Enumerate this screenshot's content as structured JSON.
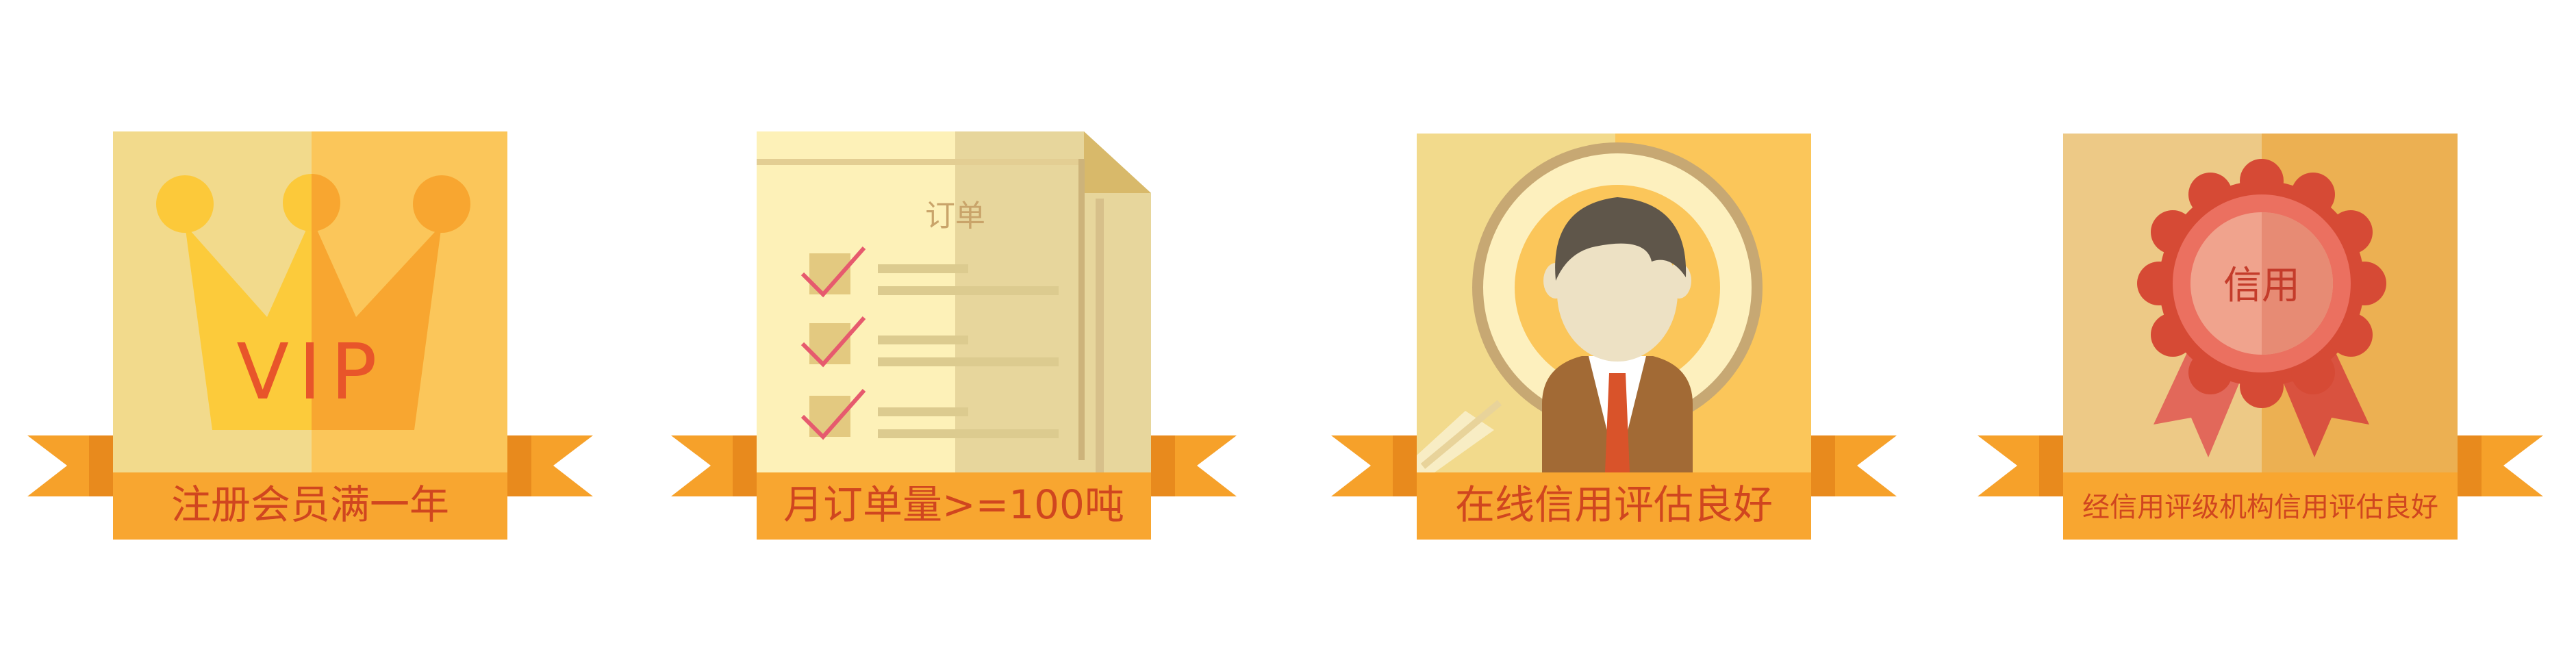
{
  "badges": [
    {
      "icon": "vip-crown-icon",
      "icon_text": "VIP",
      "banner": "注册会员满一年"
    },
    {
      "icon": "order-document-icon",
      "icon_text": "订单",
      "banner": "月订单量>=100吨"
    },
    {
      "icon": "magnifier-person-icon",
      "banner": "在线信用评估良好"
    },
    {
      "icon": "credit-rosette-icon",
      "icon_text": "信用",
      "banner": "经信用评级机构信用评估良好"
    }
  ],
  "colors": {
    "ribbon": "#F8A630",
    "ribbon_tail": "#F6A12A",
    "ribbon_fold": "#E88A1D",
    "banner_text": "#D0461F",
    "vip_text": "#E8552A",
    "order_text": "#C9A46A",
    "credit_text": "#C43C2B"
  }
}
